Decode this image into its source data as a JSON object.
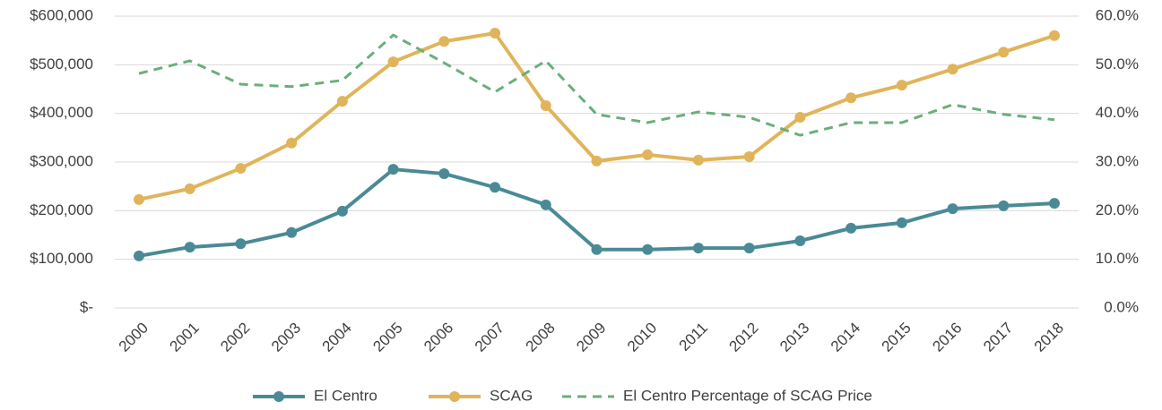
{
  "chart_data": {
    "type": "line",
    "categories": [
      "2000",
      "2001",
      "2002",
      "2003",
      "2004",
      "2005",
      "2006",
      "2007",
      "2008",
      "2009",
      "2010",
      "2011",
      "2012",
      "2013",
      "2014",
      "2015",
      "2016",
      "2017",
      "2018"
    ],
    "series": [
      {
        "name": "El Centro",
        "color": "#4a8a96",
        "marker": true,
        "dashed": false,
        "values": [
          107000,
          125000,
          132000,
          155000,
          199000,
          285000,
          276000,
          248000,
          212000,
          120000,
          120000,
          123000,
          123000,
          138000,
          164000,
          175000,
          204000,
          210000,
          215000
        ]
      },
      {
        "name": "SCAG",
        "color": "#e0b45a",
        "marker": true,
        "dashed": false,
        "values": [
          223000,
          245000,
          287000,
          339000,
          425000,
          506000,
          548000,
          565000,
          416000,
          302000,
          315000,
          304000,
          311000,
          392000,
          432000,
          458000,
          491000,
          526000,
          560000
        ]
      },
      {
        "name": "El Centro Percentage of SCAG Price",
        "color": "#6aae7d",
        "marker": false,
        "dashed": true,
        "axis": "y2",
        "values": [
          48.2,
          50.8,
          46.0,
          45.5,
          46.8,
          56.1,
          50.4,
          44.4,
          50.8,
          39.8,
          38.1,
          40.3,
          39.2,
          35.5,
          38.1,
          38.1,
          41.8,
          39.8,
          38.7
        ]
      }
    ],
    "ylim": [
      0,
      600000
    ],
    "yticks": [
      {
        "value": 0,
        "label": "$-"
      },
      {
        "value": 100000,
        "label": "$100,000"
      },
      {
        "value": 200000,
        "label": "$200,000"
      },
      {
        "value": 300000,
        "label": "$300,000"
      },
      {
        "value": 400000,
        "label": "$400,000"
      },
      {
        "value": 500000,
        "label": "$500,000"
      },
      {
        "value": 600000,
        "label": "$600,000"
      }
    ],
    "y2lim": [
      0,
      60
    ],
    "y2ticks": [
      {
        "value": 0,
        "label": "0.0%"
      },
      {
        "value": 10,
        "label": "10.0%"
      },
      {
        "value": 20,
        "label": "20.0%"
      },
      {
        "value": 30,
        "label": "30.0%"
      },
      {
        "value": 40,
        "label": "40.0%"
      },
      {
        "value": 50,
        "label": "50.0%"
      },
      {
        "value": 60,
        "label": "60.0%"
      }
    ],
    "grid": true,
    "legend": "bottom"
  }
}
